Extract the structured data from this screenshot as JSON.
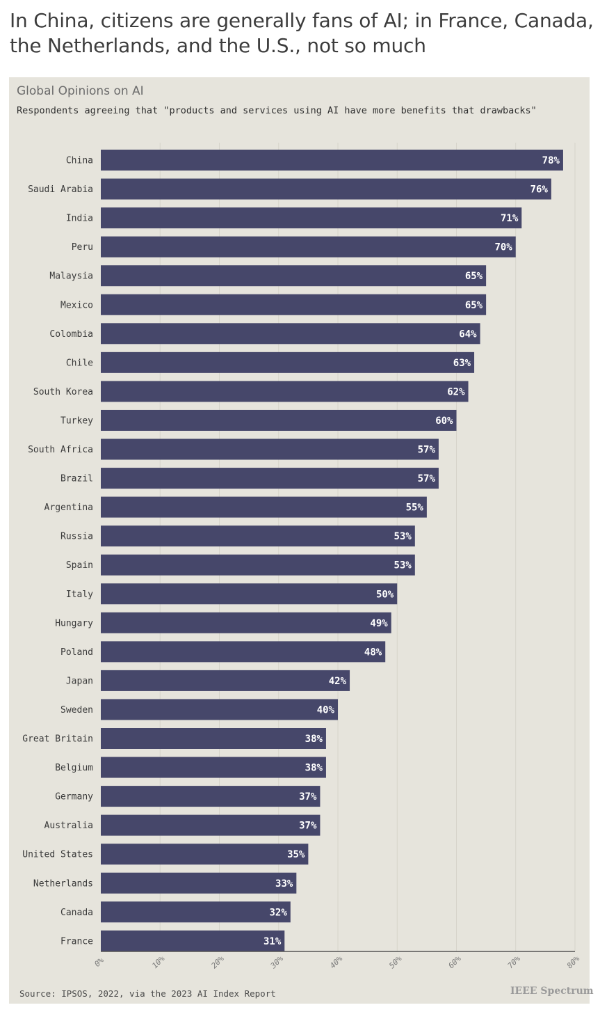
{
  "headline": "In China, citizens are generally fans of AI; in France, Canada, the Netherlands, and the U.S., not so much",
  "source": "Source: IPSOS, 2022, via the 2023 AI Index Report",
  "brand": "IEEE Spectrum",
  "colors": {
    "bar": "#46476a",
    "panel_bg": "#e6e4dc",
    "axis": "#555555",
    "grid": "#d6d3ca"
  },
  "chart_data": {
    "type": "bar",
    "orientation": "horizontal",
    "title": "Global Opinions on AI",
    "subtitle": "Respondents agreeing that \"products and services using AI have more benefits that drawbacks\"",
    "categories": [
      "China",
      "Saudi Arabia",
      "India",
      "Peru",
      "Malaysia",
      "Mexico",
      "Colombia",
      "Chile",
      "South Korea",
      "Turkey",
      "South Africa",
      "Brazil",
      "Argentina",
      "Russia",
      "Spain",
      "Italy",
      "Hungary",
      "Poland",
      "Japan",
      "Sweden",
      "Great Britain",
      "Belgium",
      "Germany",
      "Australia",
      "United States",
      "Netherlands",
      "Canada",
      "France"
    ],
    "values": [
      78,
      76,
      71,
      70,
      65,
      65,
      64,
      63,
      62,
      60,
      57,
      57,
      55,
      53,
      53,
      50,
      49,
      48,
      42,
      40,
      38,
      38,
      37,
      37,
      35,
      33,
      32,
      31
    ],
    "value_labels": [
      "78%",
      "76%",
      "71%",
      "70%",
      "65%",
      "65%",
      "64%",
      "63%",
      "62%",
      "60%",
      "57%",
      "57%",
      "55%",
      "53%",
      "53%",
      "50%",
      "49%",
      "48%",
      "42%",
      "40%",
      "38%",
      "38%",
      "37%",
      "37%",
      "35%",
      "33%",
      "32%",
      "31%"
    ],
    "xlim": [
      0,
      80
    ],
    "xticks": [
      0,
      10,
      20,
      30,
      40,
      50,
      60,
      70,
      80
    ],
    "xtick_labels": [
      "0%",
      "10%",
      "20%",
      "30%",
      "40%",
      "50%",
      "60%",
      "70%",
      "80%"
    ],
    "xlabel": "",
    "ylabel": "",
    "grid": true,
    "legend": "none"
  }
}
